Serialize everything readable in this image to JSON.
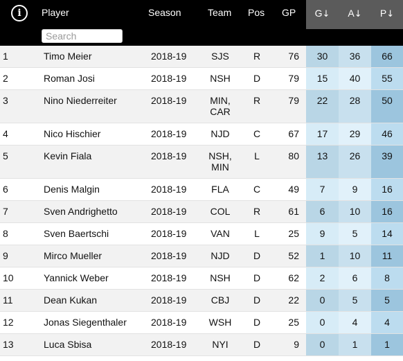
{
  "header": {
    "player_label": "Player",
    "season_label": "Season",
    "team_label": "Team",
    "pos_label": "Pos",
    "gp_label": "GP",
    "g_label": "G",
    "a_label": "A",
    "p_label": "P",
    "sort_arrow": "↓",
    "search_placeholder": "Search",
    "info_icon": "i"
  },
  "colors": {
    "header_bg": "#000000",
    "sorted_header_bg": "#5b5b5b",
    "row_odd": "#f2f2f2",
    "row_even": "#ffffff",
    "g_odd": "#b9d6e6",
    "g_even": "#d7ecf7",
    "a_odd": "#c8e0ee",
    "a_even": "#e1f1fa",
    "p_odd": "#9cc5de",
    "p_even": "#bcdcef"
  },
  "rows": [
    {
      "rank": "1",
      "player": "Timo Meier",
      "season": "2018-19",
      "team": [
        "SJS"
      ],
      "pos": "R",
      "gp": "76",
      "g": "30",
      "a": "36",
      "p": "66"
    },
    {
      "rank": "2",
      "player": "Roman Josi",
      "season": "2018-19",
      "team": [
        "NSH"
      ],
      "pos": "D",
      "gp": "79",
      "g": "15",
      "a": "40",
      "p": "55"
    },
    {
      "rank": "3",
      "player": "Nino Niederreiter",
      "season": "2018-19",
      "team": [
        "MIN,",
        "CAR"
      ],
      "pos": "R",
      "gp": "79",
      "g": "22",
      "a": "28",
      "p": "50"
    },
    {
      "rank": "4",
      "player": "Nico Hischier",
      "season": "2018-19",
      "team": [
        "NJD"
      ],
      "pos": "C",
      "gp": "67",
      "g": "17",
      "a": "29",
      "p": "46"
    },
    {
      "rank": "5",
      "player": "Kevin Fiala",
      "season": "2018-19",
      "team": [
        "NSH,",
        "MIN"
      ],
      "pos": "L",
      "gp": "80",
      "g": "13",
      "a": "26",
      "p": "39"
    },
    {
      "rank": "6",
      "player": "Denis Malgin",
      "season": "2018-19",
      "team": [
        "FLA"
      ],
      "pos": "C",
      "gp": "49",
      "g": "7",
      "a": "9",
      "p": "16"
    },
    {
      "rank": "7",
      "player": "Sven Andrighetto",
      "season": "2018-19",
      "team": [
        "COL"
      ],
      "pos": "R",
      "gp": "61",
      "g": "6",
      "a": "10",
      "p": "16"
    },
    {
      "rank": "8",
      "player": "Sven Baertschi",
      "season": "2018-19",
      "team": [
        "VAN"
      ],
      "pos": "L",
      "gp": "25",
      "g": "9",
      "a": "5",
      "p": "14"
    },
    {
      "rank": "9",
      "player": "Mirco Mueller",
      "season": "2018-19",
      "team": [
        "NJD"
      ],
      "pos": "D",
      "gp": "52",
      "g": "1",
      "a": "10",
      "p": "11"
    },
    {
      "rank": "10",
      "player": "Yannick Weber",
      "season": "2018-19",
      "team": [
        "NSH"
      ],
      "pos": "D",
      "gp": "62",
      "g": "2",
      "a": "6",
      "p": "8"
    },
    {
      "rank": "11",
      "player": "Dean Kukan",
      "season": "2018-19",
      "team": [
        "CBJ"
      ],
      "pos": "D",
      "gp": "22",
      "g": "0",
      "a": "5",
      "p": "5"
    },
    {
      "rank": "12",
      "player": "Jonas Siegenthaler",
      "season": "2018-19",
      "team": [
        "WSH"
      ],
      "pos": "D",
      "gp": "25",
      "g": "0",
      "a": "4",
      "p": "4"
    },
    {
      "rank": "13",
      "player": "Luca Sbisa",
      "season": "2018-19",
      "team": [
        "NYI"
      ],
      "pos": "D",
      "gp": "9",
      "g": "0",
      "a": "1",
      "p": "1"
    }
  ]
}
